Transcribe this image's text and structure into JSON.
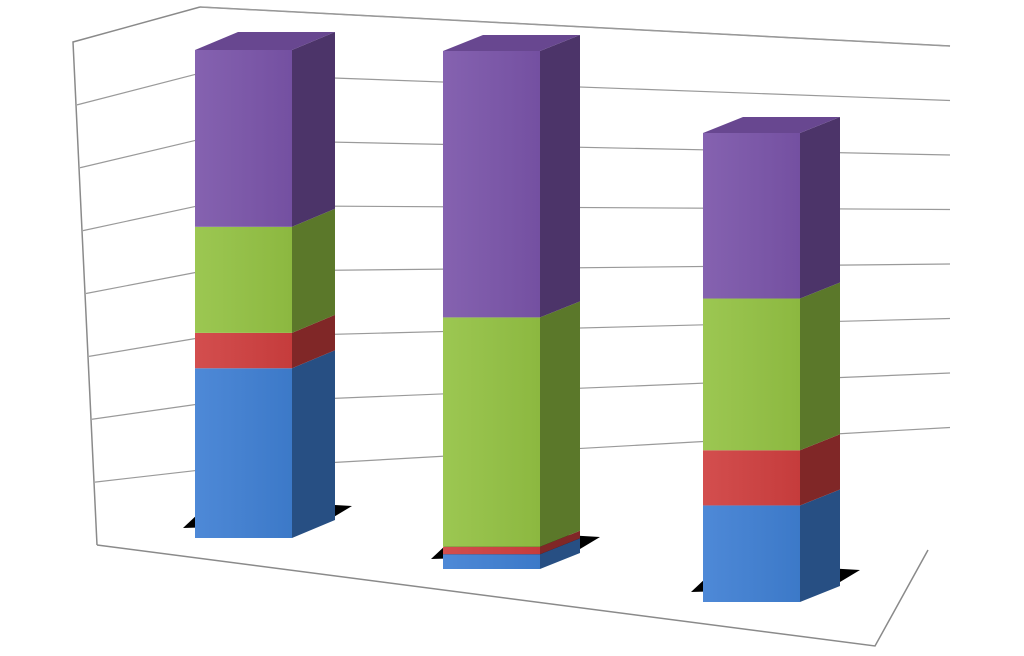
{
  "chart_data": {
    "type": "bar",
    "stacked": true,
    "style": "3d-perspective",
    "title": "",
    "xlabel": "",
    "ylabel": "",
    "ylim": [
      0,
      7
    ],
    "grid": true,
    "legend": "none",
    "categories": [
      "",
      "",
      ""
    ],
    "series": [
      {
        "color": "#3f7fd3",
        "values": [
          2.4,
          0.2,
          1.4
        ]
      },
      {
        "color": "#cf3f3f",
        "values": [
          0.5,
          0.1,
          0.8
        ]
      },
      {
        "color": "#93c243",
        "values": [
          1.5,
          3.1,
          2.2
        ]
      },
      {
        "color": "#7a54a9",
        "values": [
          2.5,
          3.6,
          2.4
        ]
      }
    ]
  }
}
